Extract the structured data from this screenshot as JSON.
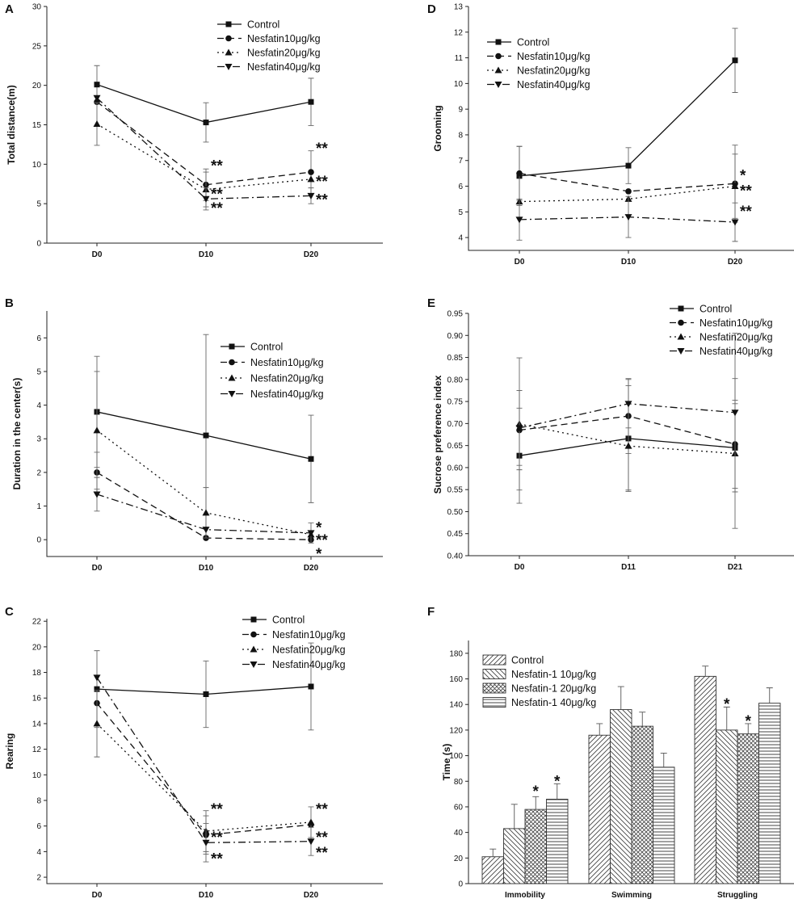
{
  "chart_data": [
    {
      "panel": "A",
      "type": "line",
      "ylabel": "Total distance(m)",
      "ylim": [
        0,
        30
      ],
      "yticks": [
        0,
        5,
        10,
        15,
        20,
        25,
        30
      ],
      "x": [
        "D0",
        "D10",
        "D20"
      ],
      "series": [
        {
          "name": "Control",
          "values": [
            20.1,
            15.3,
            17.9
          ],
          "errors": [
            2.4,
            2.5,
            3.0
          ]
        },
        {
          "name": "Nesfatin10μg/kg",
          "values": [
            17.9,
            7.4,
            9.0
          ],
          "errors": [
            0,
            2.0,
            2.7
          ]
        },
        {
          "name": "Nesfatin20μg/kg",
          "values": [
            15.1,
            6.8,
            8.1
          ],
          "errors": [
            2.7,
            2.2,
            0
          ]
        },
        {
          "name": "Nesfatin40μg/kg",
          "values": [
            18.4,
            5.6,
            6.0
          ],
          "errors": [
            0,
            1.4,
            1.0
          ]
        }
      ],
      "annotations": [
        {
          "x": "D10",
          "y": 10.1,
          "text": "**"
        },
        {
          "x": "D10",
          "y": 6.5,
          "text": "**"
        },
        {
          "x": "D10",
          "y": 4.7,
          "text": "**"
        },
        {
          "x": "D20",
          "y": 12.3,
          "text": "**"
        },
        {
          "x": "D20",
          "y": 8.1,
          "text": "**"
        },
        {
          "x": "D20",
          "y": 5.8,
          "text": "**"
        }
      ]
    },
    {
      "panel": "B",
      "type": "line",
      "ylabel": "Duration in the center(s)",
      "ylim": [
        -0.5,
        6.8
      ],
      "yticks": [
        0,
        1,
        2,
        3,
        4,
        5,
        6
      ],
      "x": [
        "D0",
        "D10",
        "D20"
      ],
      "series": [
        {
          "name": "Control",
          "values": [
            3.8,
            3.1,
            2.4
          ],
          "errors": [
            1.65,
            3.0,
            1.3
          ]
        },
        {
          "name": "Nesfatin10μg/kg",
          "values": [
            2.0,
            0.05,
            0.0
          ],
          "errors": [
            0.6,
            0,
            0
          ]
        },
        {
          "name": "Nesfatin20μg/kg",
          "values": [
            3.25,
            0.8,
            0.15
          ],
          "errors": [
            1.75,
            0.75,
            0
          ]
        },
        {
          "name": "Nesfatin40μg/kg",
          "values": [
            1.35,
            0.3,
            0.2
          ],
          "errors": [
            0.5,
            0,
            0.3
          ]
        }
      ],
      "annotations": [
        {
          "x": "D20",
          "y": 0.42,
          "text": "*"
        },
        {
          "x": "D20",
          "y": 0.05,
          "text": "**"
        },
        {
          "x": "D20",
          "y": -0.35,
          "text": "*"
        }
      ]
    },
    {
      "panel": "C",
      "type": "line",
      "ylabel": "Rearing",
      "ylim": [
        1.5,
        22.2
      ],
      "yticks": [
        2,
        4,
        6,
        8,
        10,
        12,
        14,
        16,
        18,
        20,
        22
      ],
      "x": [
        "D0",
        "D10",
        "D20"
      ],
      "series": [
        {
          "name": "Control",
          "values": [
            16.7,
            16.3,
            16.9
          ],
          "errors": [
            3.0,
            2.6,
            3.4
          ]
        },
        {
          "name": "Nesfatin10μg/kg",
          "values": [
            15.6,
            5.3,
            6.1
          ],
          "errors": [
            0,
            1.5,
            0
          ]
        },
        {
          "name": "Nesfatin20μg/kg",
          "values": [
            14.0,
            5.6,
            6.3
          ],
          "errors": [
            2.6,
            1.6,
            1.2
          ]
        },
        {
          "name": "Nesfatin40μg/kg",
          "values": [
            17.6,
            4.7,
            4.8
          ],
          "errors": [
            0,
            1.5,
            1.1
          ]
        }
      ],
      "annotations": [
        {
          "x": "D10",
          "y": 7.5,
          "text": "**"
        },
        {
          "x": "D10",
          "y": 5.3,
          "text": "**"
        },
        {
          "x": "D10",
          "y": 3.6,
          "text": "**"
        },
        {
          "x": "D20",
          "y": 7.5,
          "text": "**"
        },
        {
          "x": "D20",
          "y": 5.3,
          "text": "**"
        },
        {
          "x": "D20",
          "y": 4.1,
          "text": "**"
        }
      ]
    },
    {
      "panel": "D",
      "type": "line",
      "ylabel": "Grooming",
      "ylim": [
        3.5,
        13
      ],
      "yticks": [
        4,
        5,
        6,
        7,
        8,
        9,
        10,
        11,
        12,
        13
      ],
      "x": [
        "D0",
        "D10",
        "D20"
      ],
      "series": [
        {
          "name": "Control",
          "values": [
            6.4,
            6.8,
            10.9
          ],
          "errors": [
            1.15,
            0.7,
            1.25
          ]
        },
        {
          "name": "Nesfatin10μg/kg",
          "values": [
            6.5,
            5.8,
            6.1
          ],
          "errors": [
            1.05,
            0,
            1.5
          ]
        },
        {
          "name": "Nesfatin20μg/kg",
          "values": [
            5.4,
            5.5,
            6.0
          ],
          "errors": [
            0,
            0,
            1.25
          ]
        },
        {
          "name": "Nesfatin40μg/kg",
          "values": [
            4.7,
            4.8,
            4.6
          ],
          "errors": [
            0.8,
            0.8,
            0.75
          ]
        }
      ],
      "annotations": [
        {
          "x": "D20",
          "y": 6.5,
          "text": "*"
        },
        {
          "x": "D20",
          "y": 5.9,
          "text": "**"
        },
        {
          "x": "D20",
          "y": 5.1,
          "text": "**"
        }
      ]
    },
    {
      "panel": "E",
      "type": "line",
      "ylabel": "Sucrose preference index",
      "ylim": [
        0.4,
        0.95
      ],
      "yticks": [
        0.4,
        0.45,
        0.5,
        0.55,
        0.6,
        0.65,
        0.7,
        0.75,
        0.8,
        0.85,
        0.9,
        0.95
      ],
      "x": [
        "D0",
        "D11",
        "D21"
      ],
      "series": [
        {
          "name": "Control",
          "values": [
            0.627,
            0.666,
            0.645
          ],
          "errors": [
            0.108,
            0.12,
            0.1
          ]
        },
        {
          "name": "Nesfatin10μg/kg",
          "values": [
            0.685,
            0.717,
            0.653
          ],
          "errors": [
            0.09,
            0.085,
            0.1
          ]
        },
        {
          "name": "Nesfatin20μg/kg",
          "values": [
            0.699,
            0.649,
            0.632
          ],
          "errors": [
            0.15,
            0.1,
            0.17
          ]
        },
        {
          "name": "Nesfatin40μg/kg",
          "values": [
            0.69,
            0.745,
            0.725
          ],
          "errors": [
            0.085,
            0.055,
            0.18
          ]
        }
      ],
      "annotations": []
    },
    {
      "panel": "F",
      "type": "bar",
      "ylabel": "Time (s)",
      "ylim": [
        0,
        190
      ],
      "yticks": [
        0,
        20,
        40,
        60,
        80,
        100,
        120,
        140,
        160,
        180
      ],
      "categories": [
        "Immobility",
        "Swimming",
        "Struggling"
      ],
      "series": [
        {
          "name": "Control",
          "values": [
            21,
            116,
            162
          ],
          "errors": [
            6,
            9,
            8
          ]
        },
        {
          "name": "Nesfatin-1 10μg/kg",
          "values": [
            43,
            136,
            120
          ],
          "errors": [
            19,
            18,
            18
          ]
        },
        {
          "name": "Nesfatin-1 20μg/kg",
          "values": [
            58,
            123,
            117
          ],
          "errors": [
            10,
            11,
            8
          ]
        },
        {
          "name": "Nesfatin-1 40μg/kg",
          "values": [
            66,
            91,
            141
          ],
          "errors": [
            12,
            11,
            12
          ]
        }
      ],
      "annotations": [
        {
          "category": "Immobility",
          "series": 2,
          "y": 72,
          "text": "*"
        },
        {
          "category": "Immobility",
          "series": 3,
          "y": 80,
          "text": "*"
        },
        {
          "category": "Struggling",
          "series": 1,
          "y": 140,
          "text": "*"
        },
        {
          "category": "Struggling",
          "series": 2,
          "y": 127,
          "text": "*"
        }
      ]
    }
  ]
}
